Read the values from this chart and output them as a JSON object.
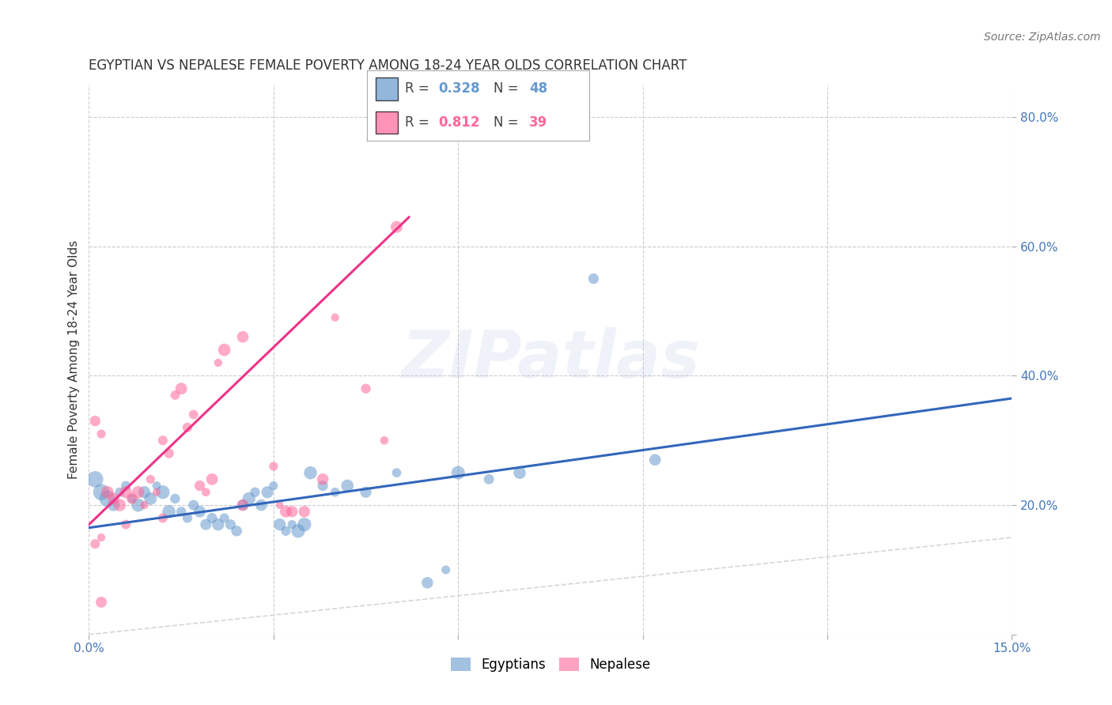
{
  "title": "EGYPTIAN VS NEPALESE FEMALE POVERTY AMONG 18-24 YEAR OLDS CORRELATION CHART",
  "source": "Source: ZipAtlas.com",
  "ylabel": "Female Poverty Among 18-24 Year Olds",
  "xlim": [
    0.0,
    0.15
  ],
  "ylim": [
    0.0,
    0.85
  ],
  "xticks": [
    0.0,
    0.03,
    0.06,
    0.09,
    0.12,
    0.15
  ],
  "xtick_labels": [
    "0.0%",
    "",
    "",
    "",
    "",
    "15.0%"
  ],
  "yticks_right": [
    0.0,
    0.2,
    0.4,
    0.6,
    0.8
  ],
  "ytick_right_labels": [
    "",
    "20.0%",
    "40.0%",
    "60.0%",
    "80.0%"
  ],
  "watermark_text": "ZIPatlas",
  "legend_eg_color": "#6699cc",
  "legend_np_color": "#ff6699",
  "legend_eg_R": "0.328",
  "legend_eg_N": "48",
  "legend_np_R": "0.812",
  "legend_np_N": "39",
  "diagonal_color": "#cccccc",
  "grid_color": "#cccccc",
  "eg_line_color": "#3366bb",
  "np_line_color": "#ee3388",
  "eg_line": [
    0.0,
    0.165,
    0.15,
    0.365
  ],
  "np_line": [
    0.0,
    0.17,
    0.052,
    0.645
  ],
  "axis_color": "#4477bb",
  "title_color": "#333333",
  "bg_color": "#ffffff",
  "egyptian_scatter": [
    [
      0.001,
      0.24
    ],
    [
      0.002,
      0.22
    ],
    [
      0.003,
      0.21
    ],
    [
      0.004,
      0.2
    ],
    [
      0.005,
      0.22
    ],
    [
      0.006,
      0.23
    ],
    [
      0.007,
      0.21
    ],
    [
      0.008,
      0.2
    ],
    [
      0.009,
      0.22
    ],
    [
      0.01,
      0.21
    ],
    [
      0.011,
      0.23
    ],
    [
      0.012,
      0.22
    ],
    [
      0.013,
      0.19
    ],
    [
      0.014,
      0.21
    ],
    [
      0.015,
      0.19
    ],
    [
      0.016,
      0.18
    ],
    [
      0.017,
      0.2
    ],
    [
      0.018,
      0.19
    ],
    [
      0.019,
      0.17
    ],
    [
      0.02,
      0.18
    ],
    [
      0.021,
      0.17
    ],
    [
      0.022,
      0.18
    ],
    [
      0.023,
      0.17
    ],
    [
      0.024,
      0.16
    ],
    [
      0.025,
      0.2
    ],
    [
      0.026,
      0.21
    ],
    [
      0.027,
      0.22
    ],
    [
      0.028,
      0.2
    ],
    [
      0.029,
      0.22
    ],
    [
      0.03,
      0.23
    ],
    [
      0.031,
      0.17
    ],
    [
      0.032,
      0.16
    ],
    [
      0.033,
      0.17
    ],
    [
      0.034,
      0.16
    ],
    [
      0.035,
      0.17
    ],
    [
      0.036,
      0.25
    ],
    [
      0.038,
      0.23
    ],
    [
      0.04,
      0.22
    ],
    [
      0.042,
      0.23
    ],
    [
      0.045,
      0.22
    ],
    [
      0.05,
      0.25
    ],
    [
      0.055,
      0.08
    ],
    [
      0.058,
      0.1
    ],
    [
      0.06,
      0.25
    ],
    [
      0.065,
      0.24
    ],
    [
      0.07,
      0.25
    ],
    [
      0.082,
      0.55
    ],
    [
      0.092,
      0.27
    ]
  ],
  "nepalese_scatter": [
    [
      0.001,
      0.33
    ],
    [
      0.002,
      0.31
    ],
    [
      0.003,
      0.22
    ],
    [
      0.004,
      0.21
    ],
    [
      0.005,
      0.2
    ],
    [
      0.006,
      0.22
    ],
    [
      0.007,
      0.21
    ],
    [
      0.008,
      0.22
    ],
    [
      0.009,
      0.2
    ],
    [
      0.01,
      0.24
    ],
    [
      0.011,
      0.22
    ],
    [
      0.012,
      0.3
    ],
    [
      0.013,
      0.28
    ],
    [
      0.014,
      0.37
    ],
    [
      0.015,
      0.38
    ],
    [
      0.016,
      0.32
    ],
    [
      0.017,
      0.34
    ],
    [
      0.018,
      0.23
    ],
    [
      0.019,
      0.22
    ],
    [
      0.02,
      0.24
    ],
    [
      0.021,
      0.42
    ],
    [
      0.022,
      0.44
    ],
    [
      0.025,
      0.46
    ],
    [
      0.03,
      0.26
    ],
    [
      0.031,
      0.2
    ],
    [
      0.032,
      0.19
    ],
    [
      0.033,
      0.19
    ],
    [
      0.035,
      0.19
    ],
    [
      0.038,
      0.24
    ],
    [
      0.04,
      0.49
    ],
    [
      0.045,
      0.38
    ],
    [
      0.048,
      0.3
    ],
    [
      0.05,
      0.63
    ],
    [
      0.002,
      0.05
    ],
    [
      0.001,
      0.14
    ],
    [
      0.002,
      0.15
    ],
    [
      0.006,
      0.17
    ],
    [
      0.012,
      0.18
    ],
    [
      0.025,
      0.2
    ]
  ],
  "scatter_alpha": 0.55,
  "title_fontsize": 12,
  "ylabel_fontsize": 11,
  "tick_fontsize": 11,
  "source_fontsize": 10,
  "watermark_fontsize": 60,
  "legend_fontsize": 12
}
